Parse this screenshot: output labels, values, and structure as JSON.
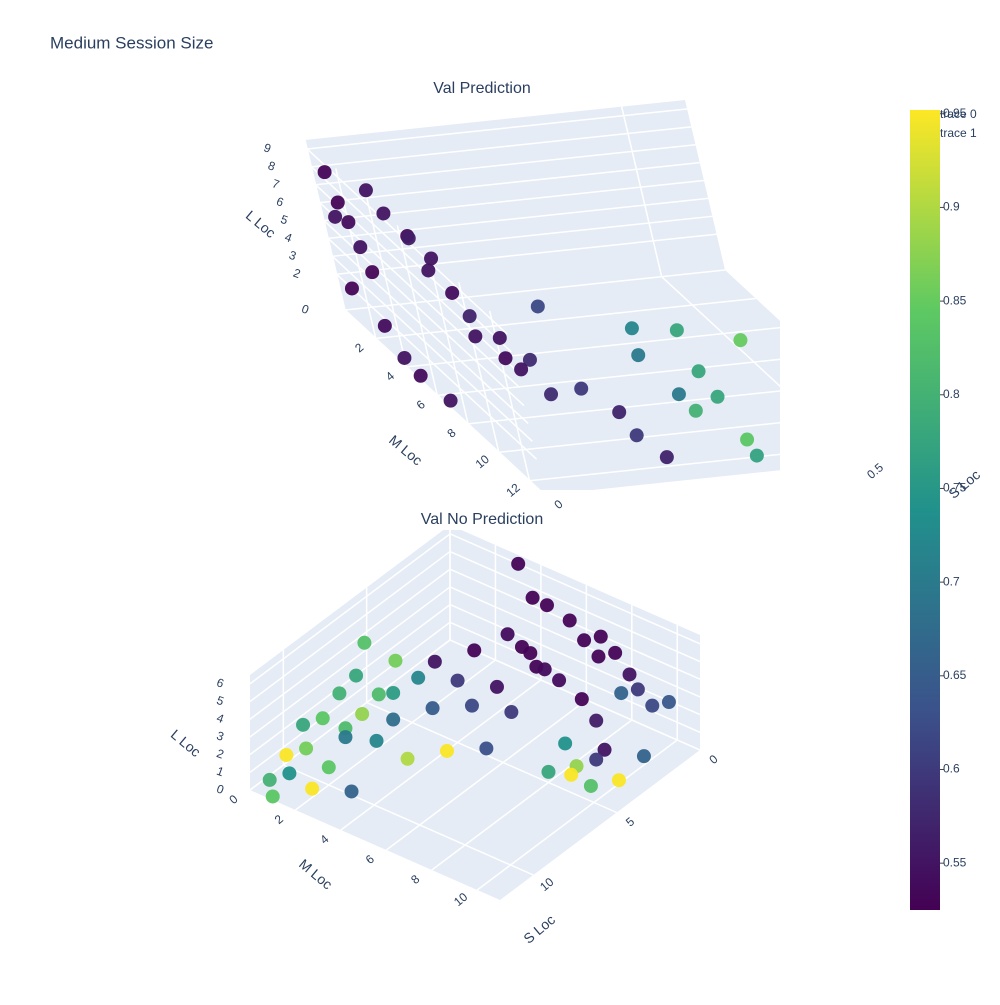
{
  "chart_data": {
    "type": "scatter3d",
    "title": "Medium Session Size",
    "colorscale": [
      "#440154",
      "#3b528b",
      "#21918c",
      "#5ec962",
      "#fde725"
    ],
    "clim": [
      0.525,
      0.952
    ],
    "cticks": [
      0.55,
      0.6,
      0.65,
      0.7,
      0.75,
      0.8,
      0.85,
      0.9,
      0.95
    ],
    "legend": [
      "trace 0",
      "trace 1"
    ],
    "scenes": [
      {
        "subtitle": "Val Prediction",
        "xlabel": "S Loc",
        "ylabel": "M Loc",
        "zlabel": "L Loc",
        "xlim": [
          0,
          0.6
        ],
        "ylim": [
          0,
          13
        ],
        "zlim": [
          0,
          9.5
        ],
        "xticks": [
          0,
          0.5
        ],
        "yticks": [
          2,
          4,
          6,
          8,
          10,
          12
        ],
        "zticks": [
          0,
          2,
          3,
          4,
          5,
          6,
          7,
          8,
          9
        ],
        "x": [
          0,
          0,
          0,
          0,
          0,
          0,
          0,
          0,
          0,
          0,
          0,
          0.02,
          0.02,
          0.03,
          0.04,
          0.05,
          0.05,
          0.06,
          0.06,
          0.08,
          0.1,
          0.08,
          0.1,
          0.12,
          0.12,
          0.15,
          0.15,
          0.2,
          0.2,
          0.22,
          0.25,
          0.25,
          0.28,
          0.3,
          0.3,
          0.32,
          0.3,
          0.35,
          0.35,
          0.45,
          0.5,
          0.55,
          0.4
        ],
        "y": [
          1,
          1.5,
          2,
          1,
          2.5,
          3,
          1,
          3,
          4,
          5,
          7,
          3,
          4,
          5,
          6,
          4,
          5,
          6,
          7,
          8,
          9,
          6,
          7,
          7,
          9,
          8,
          10,
          10,
          11,
          12,
          10,
          10,
          11,
          11,
          12,
          12,
          11,
          12,
          12.5,
          8,
          12,
          11,
          13
        ],
        "z": [
          8.5,
          7.2,
          6.5,
          6,
          5.5,
          4.5,
          2,
          1.5,
          0.5,
          0.3,
          0.5,
          9,
          8.5,
          8,
          7.5,
          7,
          6,
          5.5,
          5,
          4.5,
          4,
          3,
          2.5,
          1.8,
          2,
          6,
          3,
          1.5,
          1,
          0.5,
          6,
          4.5,
          3,
          6.5,
          5,
          3.5,
          2,
          1,
          0.5,
          3,
          0.5,
          1,
          0
        ],
        "values": [
          0.53,
          0.53,
          0.54,
          0.55,
          0.55,
          0.53,
          0.53,
          0.54,
          0.55,
          0.54,
          0.55,
          0.55,
          0.55,
          0.54,
          0.55,
          0.56,
          0.55,
          0.54,
          0.57,
          0.55,
          0.58,
          0.55,
          0.54,
          0.55,
          0.58,
          0.62,
          0.6,
          0.57,
          0.6,
          0.57,
          0.72,
          0.7,
          0.7,
          0.78,
          0.78,
          0.78,
          0.8,
          0.84,
          0.77,
          0.85,
          0.8,
          0.77,
          0.84
        ]
      },
      {
        "subtitle": "Val No Prediction",
        "xlabel": "S Loc",
        "ylabel": "M Loc",
        "zlabel": "L Loc",
        "xlim": [
          0,
          12
        ],
        "ylim": [
          0,
          11
        ],
        "zlim": [
          0,
          6.5
        ],
        "xticks": [
          0,
          5,
          10
        ],
        "yticks": [
          0,
          2,
          4,
          6,
          8,
          10
        ],
        "zticks": [
          0,
          1,
          2,
          3,
          4,
          5,
          6
        ],
        "x": [
          0,
          0.5,
          1,
          1,
          1.5,
          2,
          2,
          2.5,
          3,
          0.5,
          1,
          1.5,
          2,
          2.5,
          3,
          3,
          3.5,
          4,
          1,
          2,
          1.5,
          0.5,
          4,
          4.5,
          5,
          5,
          5.5,
          6,
          6,
          6.5,
          7,
          7,
          7.5,
          8,
          8,
          8.5,
          9,
          9,
          9.5,
          10,
          10,
          10.5,
          11,
          11,
          11.5,
          12,
          6,
          7,
          8,
          9,
          10,
          3,
          3.5,
          4,
          4.5,
          5,
          4,
          3.5,
          5,
          2,
          6.5,
          7.5
        ],
        "y": [
          3,
          4,
          5,
          6,
          7,
          8,
          4,
          5,
          6,
          7,
          8,
          9,
          5,
          6,
          7,
          8,
          9,
          4,
          9,
          9,
          10,
          10,
          5,
          6,
          3,
          4,
          5,
          2,
          3,
          4,
          1,
          2,
          3,
          1,
          2,
          3,
          1,
          2,
          0.5,
          1,
          2,
          0.5,
          1,
          2,
          0.5,
          1,
          6,
          5,
          4,
          2,
          3,
          9,
          9,
          8.5,
          9.5,
          8,
          8,
          10,
          9,
          10,
          1,
          3
        ],
        "z": [
          6,
          5,
          5.5,
          5.2,
          5,
          5,
          4,
          4.2,
          4,
          4.5,
          4.5,
          4.2,
          3.5,
          3.5,
          3.8,
          3.3,
          3,
          4.5,
          3,
          3.5,
          3,
          2.5,
          3,
          2.5,
          4,
          3.5,
          3,
          4.2,
          3.8,
          3,
          3.5,
          3,
          2.5,
          3.2,
          2.6,
          2,
          2.5,
          2,
          2.2,
          1.5,
          1,
          1.2,
          0.8,
          0.5,
          0.5,
          0.2,
          1.5,
          1.5,
          1.2,
          2.5,
          0.2,
          1,
          0.8,
          0.5,
          0.3,
          0.6,
          1.5,
          0.2,
          1,
          0.5,
          5,
          4
        ],
        "values": [
          0.53,
          0.53,
          0.53,
          0.53,
          0.53,
          0.53,
          0.54,
          0.53,
          0.53,
          0.53,
          0.53,
          0.55,
          0.53,
          0.54,
          0.54,
          0.53,
          0.56,
          0.53,
          0.6,
          0.66,
          0.62,
          0.64,
          0.55,
          0.6,
          0.55,
          0.6,
          0.62,
          0.86,
          0.72,
          0.65,
          0.78,
          0.82,
          0.68,
          0.8,
          0.88,
          0.72,
          0.84,
          0.7,
          0.78,
          0.86,
          0.84,
          0.95,
          0.74,
          0.95,
          0.8,
          0.84,
          0.63,
          0.95,
          0.9,
          0.82,
          0.66,
          0.55,
          0.6,
          0.88,
          0.83,
          0.78,
          0.74,
          0.95,
          0.95,
          0.66,
          0.83,
          0.76
        ]
      }
    ]
  }
}
